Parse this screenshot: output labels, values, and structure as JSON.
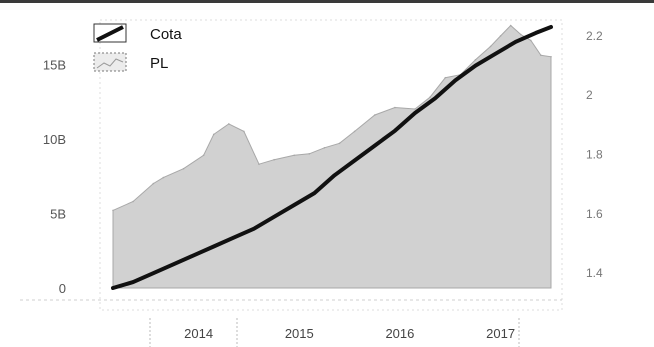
{
  "chart_data": {
    "type": "area",
    "title": "",
    "legend": {
      "position": "top-left",
      "entries": [
        {
          "label": "Cota",
          "style": "line",
          "color": "#111111"
        },
        {
          "label": "PL",
          "style": "area",
          "color": "#c9c9c9"
        }
      ]
    },
    "x_axis": {
      "ticks": [
        "2014",
        "2015",
        "2016",
        "2017"
      ],
      "range": [
        2013.6,
        2018.0
      ]
    },
    "y_axis_left": {
      "ticks": [
        {
          "value": 0,
          "label": "0"
        },
        {
          "value": 5,
          "label": "5B"
        },
        {
          "value": 10,
          "label": "10B"
        },
        {
          "value": 15,
          "label": "15B"
        }
      ],
      "range": [
        0,
        17.5
      ],
      "unit": "B"
    },
    "y_axis_right": {
      "ticks": [
        {
          "value": 1.4,
          "label": "1.4"
        },
        {
          "value": 1.6,
          "label": "1.6"
        },
        {
          "value": 1.8,
          "label": "1.8"
        },
        {
          "value": 2.0,
          "label": "2"
        },
        {
          "value": 2.2,
          "label": "2.2"
        }
      ],
      "range": [
        1.35,
        2.23
      ]
    },
    "series": [
      {
        "name": "PL",
        "axis": "left",
        "type": "area",
        "color": "#c9c9c9",
        "x": [
          2013.6,
          2013.8,
          2014.0,
          2014.1,
          2014.3,
          2014.5,
          2014.6,
          2014.75,
          2014.9,
          2015.05,
          2015.2,
          2015.4,
          2015.55,
          2015.7,
          2015.85,
          2016.0,
          2016.2,
          2016.4,
          2016.6,
          2016.75,
          2016.9,
          2017.05,
          2017.2,
          2017.35,
          2017.45,
          2017.55,
          2017.65,
          2017.75,
          2017.85,
          2017.95
        ],
        "values": [
          5.2,
          5.8,
          7.0,
          7.4,
          8.0,
          8.9,
          10.3,
          11.0,
          10.5,
          8.3,
          8.6,
          8.9,
          9.0,
          9.4,
          9.7,
          10.5,
          11.6,
          12.1,
          12.0,
          12.8,
          14.1,
          14.3,
          15.3,
          16.2,
          16.9,
          17.6,
          17.0,
          16.6,
          15.6,
          15.5
        ]
      },
      {
        "name": "Cota",
        "axis": "right",
        "type": "line",
        "color": "#111111",
        "x": [
          2013.6,
          2013.8,
          2014.0,
          2014.2,
          2014.4,
          2014.6,
          2014.8,
          2015.0,
          2015.2,
          2015.4,
          2015.6,
          2015.8,
          2016.0,
          2016.2,
          2016.4,
          2016.6,
          2016.8,
          2017.0,
          2017.2,
          2017.4,
          2017.6,
          2017.8,
          2017.95
        ],
        "values": [
          1.35,
          1.37,
          1.4,
          1.43,
          1.46,
          1.49,
          1.52,
          1.55,
          1.59,
          1.63,
          1.67,
          1.73,
          1.78,
          1.83,
          1.88,
          1.94,
          1.99,
          2.05,
          2.1,
          2.14,
          2.18,
          2.21,
          2.23
        ]
      }
    ]
  }
}
